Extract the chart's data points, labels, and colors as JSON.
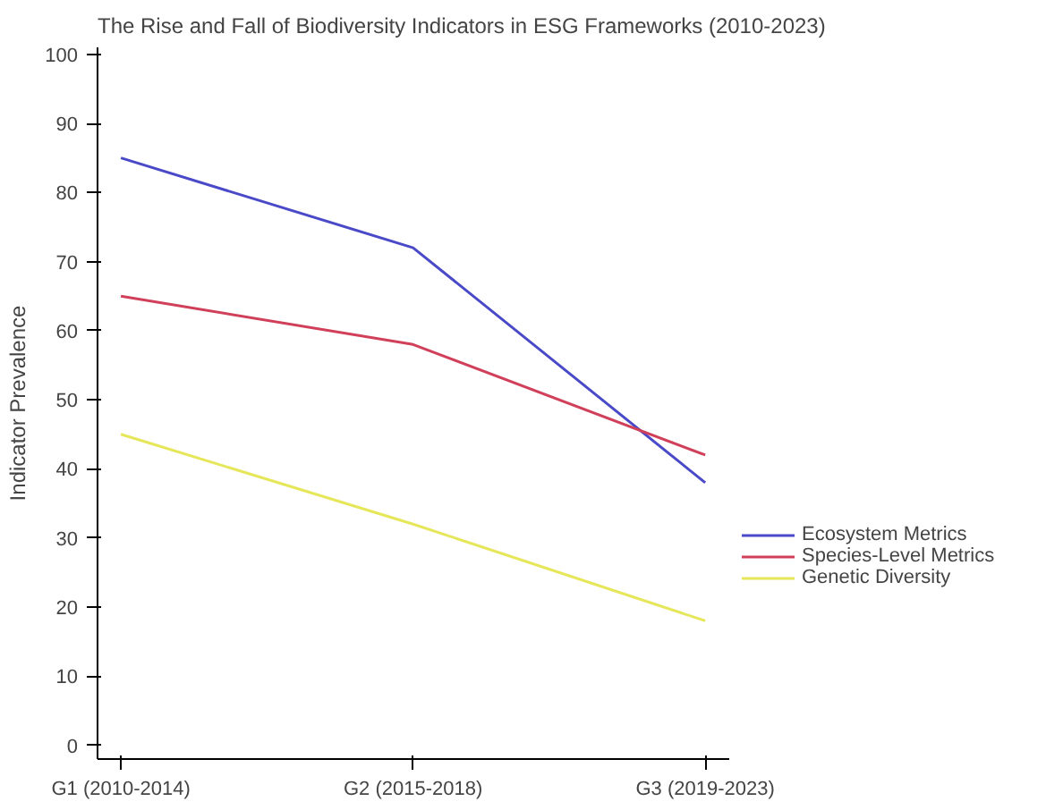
{
  "chart_data": {
    "type": "line",
    "title": "The Rise and Fall of Biodiversity Indicators in ESG Frameworks (2010-2023)",
    "ylabel": "Indicator Prevalence",
    "categories": [
      "G1 (2010-2014)",
      "G2 (2015-2018)",
      "G3 (2019-2023)"
    ],
    "series": [
      {
        "name": "Ecosystem Metrics",
        "color": "#4a4ac8",
        "values": [
          85,
          72,
          38
        ]
      },
      {
        "name": "Species-Level Metrics",
        "color": "#d0405a",
        "values": [
          65,
          58,
          42
        ]
      },
      {
        "name": "Genetic Diversity",
        "color": "#e6e65a",
        "values": [
          45,
          32,
          18
        ]
      }
    ],
    "ylim": [
      -2,
      101
    ],
    "yticks": [
      0,
      10,
      20,
      30,
      40,
      50,
      60,
      70,
      80,
      90,
      100
    ],
    "grid": false,
    "legend": "right",
    "marker": "none",
    "line_style": "solid"
  }
}
